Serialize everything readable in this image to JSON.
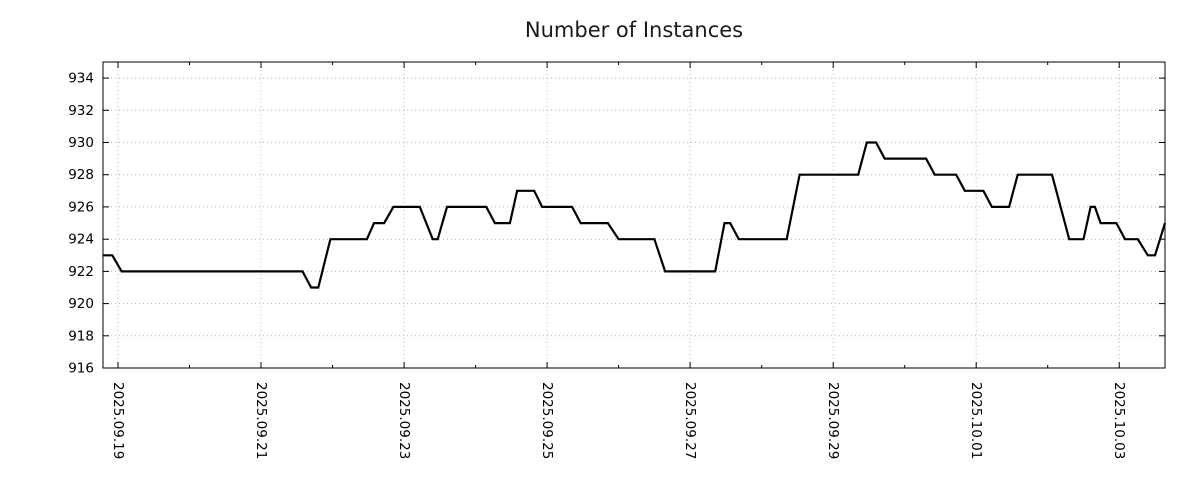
{
  "chart_data": {
    "type": "line",
    "title": "Number of Instances",
    "xlabel": "",
    "ylabel": "",
    "legend": "none",
    "grid": true,
    "line_color": "#000000",
    "grid_color": "#b3b3b3",
    "axis_color": "#000000",
    "title_color": "#1a1a1a",
    "x_unit": "days since 2025.09.19",
    "x_tick_labels": [
      "2025.09.19",
      "2025.09.21",
      "2025.09.23",
      "2025.09.25",
      "2025.09.27",
      "2025.09.29",
      "2025.10.01",
      "2025.10.03"
    ],
    "x_tick_positions": [
      0,
      2,
      4,
      6,
      8,
      10,
      12,
      14
    ],
    "x_range": [
      -0.21,
      14.64
    ],
    "y_ticks": [
      916,
      918,
      920,
      922,
      924,
      926,
      928,
      930,
      932,
      934
    ],
    "y_range": [
      916,
      935
    ],
    "series": [
      {
        "name": "Number of Instances",
        "x": [
          -0.21,
          -0.08,
          0.05,
          2.58,
          2.7,
          2.8,
          2.97,
          3.48,
          3.58,
          3.72,
          3.85,
          4.22,
          4.4,
          4.47,
          4.6,
          5.15,
          5.27,
          5.48,
          5.58,
          5.82,
          5.93,
          6.35,
          6.47,
          6.85,
          7.0,
          7.5,
          7.65,
          8.35,
          8.48,
          8.56,
          8.68,
          9.35,
          9.53,
          10.35,
          10.47,
          10.6,
          10.72,
          11.3,
          11.42,
          11.72,
          11.84,
          12.1,
          12.22,
          12.46,
          12.58,
          13.06,
          13.3,
          13.5,
          13.6,
          13.66,
          13.74,
          13.96,
          14.08,
          14.26,
          14.4,
          14.5,
          14.64
        ],
        "y": [
          923,
          923,
          922,
          922,
          921,
          921,
          924,
          924,
          925,
          925,
          926,
          926,
          924,
          924,
          926,
          926,
          925,
          925,
          927,
          927,
          926,
          926,
          925,
          925,
          924,
          924,
          922,
          922,
          925,
          925,
          924,
          924,
          928,
          928,
          930,
          930,
          929,
          929,
          928,
          928,
          927,
          927,
          926,
          926,
          928,
          928,
          924,
          924,
          926,
          926,
          925,
          925,
          924,
          924,
          923,
          923,
          925
        ]
      }
    ]
  }
}
